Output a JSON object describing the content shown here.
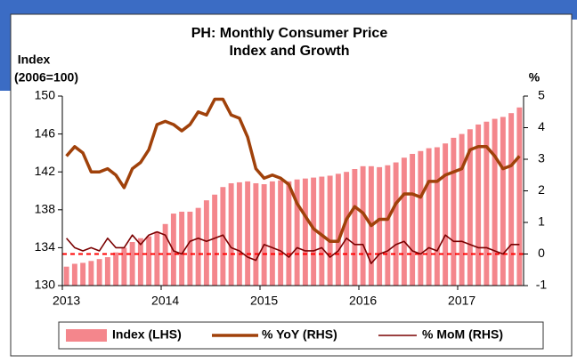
{
  "chart_data": {
    "type": "bar-line",
    "title": "PH: Monthly Consumer Price",
    "subtitle": "Index and Growth",
    "y_label": [
      "Index",
      "(2006=100)"
    ],
    "y2_label": "%",
    "categories": [
      "2013",
      null,
      null,
      null,
      null,
      null,
      null,
      null,
      null,
      null,
      null,
      null,
      "2014",
      null,
      null,
      null,
      null,
      null,
      null,
      null,
      null,
      null,
      null,
      null,
      "2015",
      null,
      null,
      null,
      null,
      null,
      null,
      null,
      null,
      null,
      null,
      null,
      "2016",
      null,
      null,
      null,
      null,
      null,
      null,
      null,
      null,
      null,
      null,
      null,
      "2017",
      null,
      null,
      null,
      null,
      null,
      null,
      null
    ],
    "ylim": [
      130,
      150
    ],
    "yticks": [
      130,
      134,
      138,
      142,
      146,
      150
    ],
    "y2lim": [
      -1,
      5
    ],
    "y2ticks": [
      -1,
      0,
      1,
      2,
      3,
      4,
      5
    ],
    "series": [
      {
        "name": "Index (LHS)",
        "type": "bar",
        "color": "#f4868c",
        "values": [
          132.0,
          132.3,
          132.4,
          132.6,
          132.8,
          133.0,
          133.5,
          134.0,
          134.6,
          135.0,
          135.2,
          135.7,
          136.5,
          137.6,
          137.8,
          137.8,
          138.2,
          139.0,
          139.6,
          140.4,
          140.8,
          140.9,
          141.0,
          140.8,
          140.7,
          141.0,
          141.1,
          141.0,
          141.2,
          141.3,
          141.4,
          141.5,
          141.6,
          141.8,
          142.0,
          142.3,
          142.6,
          142.6,
          142.5,
          142.7,
          143.0,
          143.5,
          143.9,
          144.2,
          144.5,
          144.6,
          145.0,
          145.6,
          146.0,
          146.5,
          147.0,
          147.3,
          147.6,
          147.8,
          148.2,
          148.8
        ]
      },
      {
        "name": "% YoY (RHS)",
        "type": "line",
        "axis": "y2",
        "color": "#a0410a",
        "values": [
          3.1,
          3.4,
          3.2,
          2.6,
          2.6,
          2.7,
          2.5,
          2.1,
          2.7,
          2.9,
          3.3,
          4.1,
          4.2,
          4.1,
          3.9,
          4.1,
          4.5,
          4.4,
          4.9,
          4.9,
          4.4,
          4.3,
          3.7,
          2.7,
          2.4,
          2.5,
          2.4,
          2.2,
          1.6,
          1.2,
          0.8,
          0.6,
          0.4,
          0.4,
          1.1,
          1.5,
          1.3,
          0.9,
          1.1,
          1.1,
          1.6,
          1.9,
          1.9,
          1.8,
          2.3,
          2.3,
          2.5,
          2.6,
          2.7,
          3.3,
          3.4,
          3.4,
          3.1,
          2.7,
          2.8,
          3.1
        ]
      },
      {
        "name": "% MoM (RHS)",
        "type": "line",
        "axis": "y2",
        "color": "#7a0000",
        "values": [
          0.5,
          0.2,
          0.1,
          0.2,
          0.1,
          0.5,
          0.2,
          0.2,
          0.6,
          0.3,
          0.6,
          0.7,
          0.6,
          0.1,
          0.0,
          0.4,
          0.5,
          0.4,
          0.5,
          0.6,
          0.2,
          0.1,
          -0.1,
          -0.2,
          0.3,
          0.2,
          0.1,
          -0.1,
          0.2,
          0.1,
          0.1,
          0.2,
          -0.1,
          0.1,
          0.5,
          0.3,
          0.3,
          -0.3,
          0.0,
          0.1,
          0.3,
          0.4,
          0.1,
          0.0,
          0.2,
          0.1,
          0.6,
          0.4,
          0.4,
          0.3,
          0.2,
          0.2,
          0.1,
          0.0,
          0.3,
          0.3
        ]
      }
    ],
    "reference_line": {
      "value": 0,
      "axis": "y2",
      "color": "#ff0000"
    }
  }
}
